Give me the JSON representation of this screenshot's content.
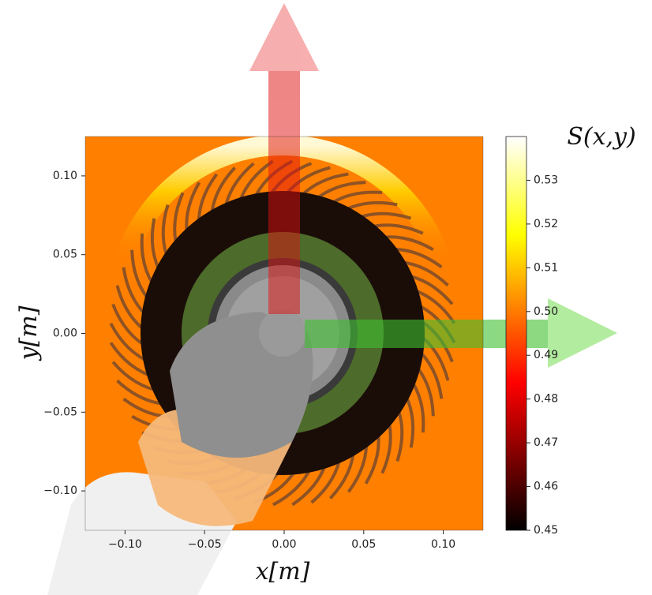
{
  "chart_data": {
    "type": "heatmap",
    "xlabel": "x[m]",
    "ylabel": "y[m]",
    "colorbar_label": "S(x,y)",
    "xlim": [
      -0.125,
      0.125
    ],
    "ylim": [
      -0.125,
      0.125
    ],
    "xticks": [
      {
        "value": -0.1,
        "label": "−0.10"
      },
      {
        "value": -0.05,
        "label": "−0.05"
      },
      {
        "value": 0,
        "label": "0.00"
      },
      {
        "value": 0.05,
        "label": "0.05"
      },
      {
        "value": 0.1,
        "label": "0.10"
      }
    ],
    "yticks": [
      {
        "value": -0.1,
        "label": "−0.10"
      },
      {
        "value": -0.05,
        "label": "−0.05"
      },
      {
        "value": 0,
        "label": "0.00"
      },
      {
        "value": 0.05,
        "label": "0.05"
      },
      {
        "value": 0.1,
        "label": "0.10"
      }
    ],
    "clim": [
      0.45,
      0.54
    ],
    "cticks": [
      0.45,
      0.46,
      0.47,
      0.48,
      0.49,
      {
        "value": 0.5,
        "label": "0.50"
      },
      0.51,
      0.52,
      0.53
    ],
    "colormap_stops": [
      [
        0,
        "#000000"
      ],
      [
        0.375,
        "#ff0000"
      ],
      [
        0.75,
        "#ffff00"
      ],
      [
        1,
        "#ffffff"
      ]
    ],
    "background_color": "#ff8000"
  }
}
